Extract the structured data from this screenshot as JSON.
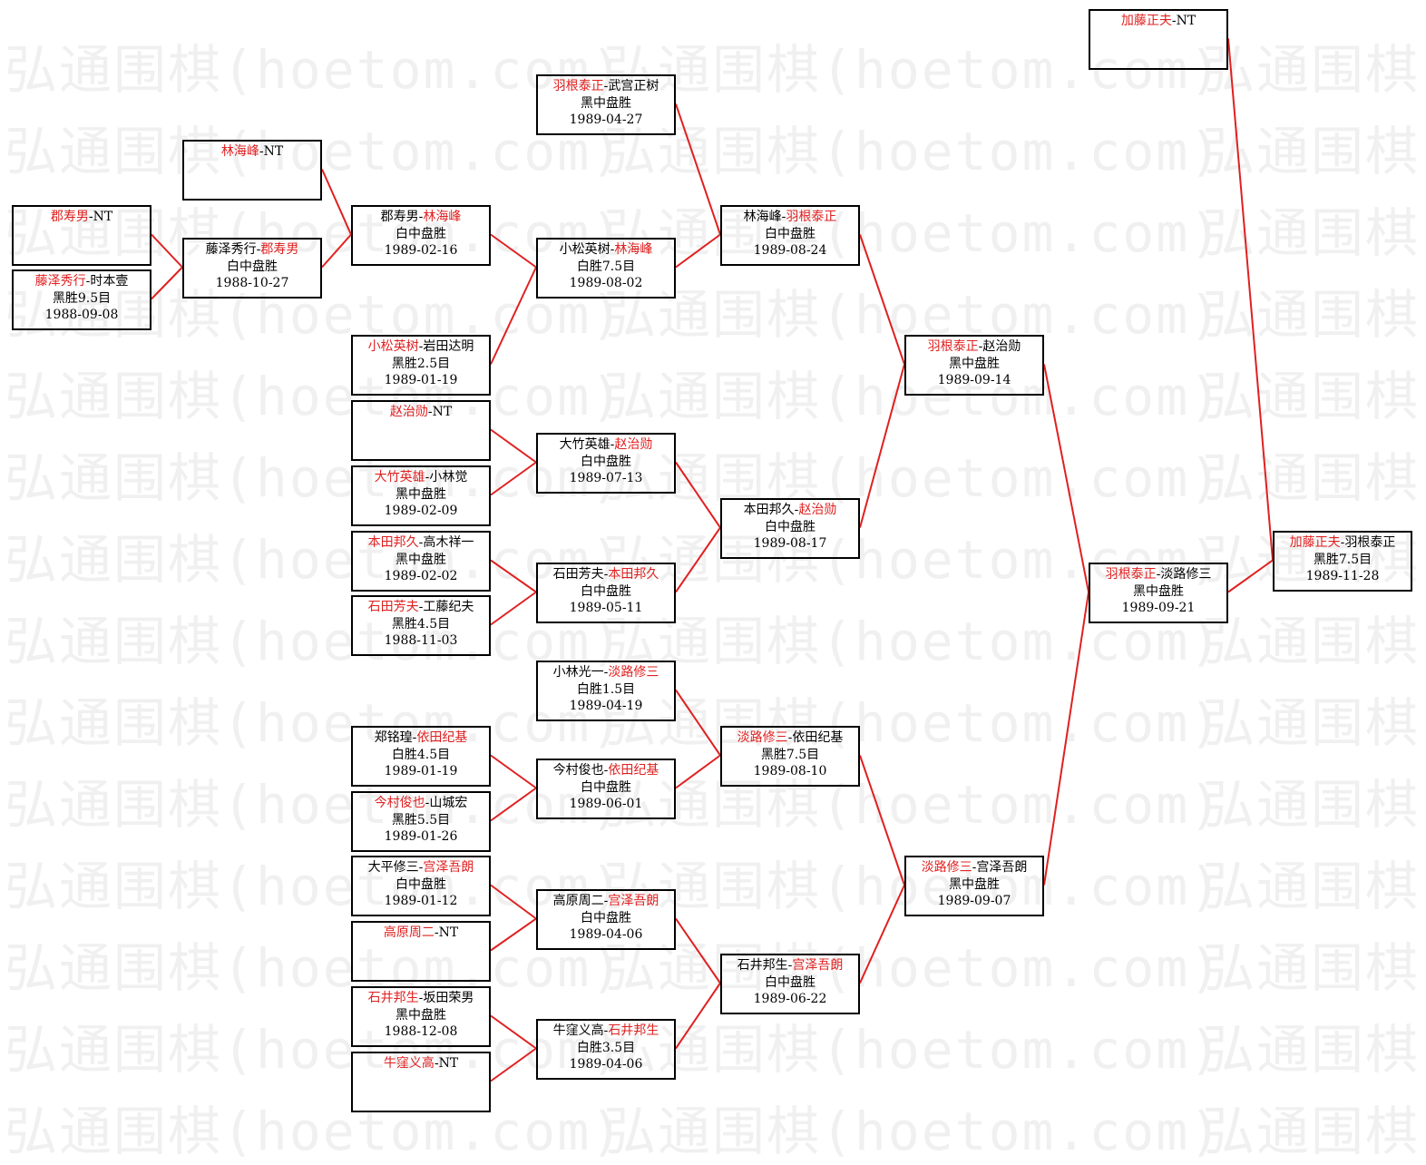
{
  "watermark": "弘通围棋(hoetom.com)",
  "colors": {
    "winner": "#e02020",
    "line": "#e02020",
    "border": "#000000"
  },
  "matches": [
    {
      "p1": "郡寿男",
      "p2": "NT",
      "winner": 1,
      "result": "",
      "date": ""
    },
    {
      "p1": "藤泽秀行",
      "p2": "时本壹",
      "winner": 1,
      "result": "黑胜9.5目",
      "date": "1988-09-08"
    },
    {
      "p1": "林海峰",
      "p2": "NT",
      "winner": 1,
      "result": "",
      "date": ""
    },
    {
      "p1": "藤泽秀行",
      "p2": "郡寿男",
      "winner": 2,
      "result": "白中盘胜",
      "date": "1988-10-27"
    },
    {
      "p1": "郡寿男",
      "p2": "林海峰",
      "winner": 2,
      "result": "白中盘胜",
      "date": "1989-02-16"
    },
    {
      "p1": "小松英树",
      "p2": "岩田达明",
      "winner": 1,
      "result": "黑胜2.5目",
      "date": "1989-01-19"
    },
    {
      "p1": "赵治勋",
      "p2": "NT",
      "winner": 1,
      "result": "",
      "date": ""
    },
    {
      "p1": "大竹英雄",
      "p2": "小林觉",
      "winner": 1,
      "result": "黑中盘胜",
      "date": "1989-02-09"
    },
    {
      "p1": "本田邦久",
      "p2": "高木祥一",
      "winner": 1,
      "result": "黑中盘胜",
      "date": "1989-02-02"
    },
    {
      "p1": "石田芳夫",
      "p2": "工藤纪夫",
      "winner": 1,
      "result": "黑胜4.5目",
      "date": "1988-11-03"
    },
    {
      "p1": "郑铭瑝",
      "p2": "依田纪基",
      "winner": 2,
      "result": "白胜4.5目",
      "date": "1989-01-19"
    },
    {
      "p1": "今村俊也",
      "p2": "山城宏",
      "winner": 1,
      "result": "黑胜5.5目",
      "date": "1989-01-26"
    },
    {
      "p1": "大平修三",
      "p2": "宫泽吾朗",
      "winner": 2,
      "result": "白中盘胜",
      "date": "1989-01-12"
    },
    {
      "p1": "高原周二",
      "p2": "NT",
      "winner": 1,
      "result": "",
      "date": ""
    },
    {
      "p1": "石井邦生",
      "p2": "坂田荣男",
      "winner": 1,
      "result": "黑中盘胜",
      "date": "1988-12-08"
    },
    {
      "p1": "牛窪义高",
      "p2": "NT",
      "winner": 1,
      "result": "",
      "date": ""
    },
    {
      "p1": "羽根泰正",
      "p2": "武宫正树",
      "winner": 1,
      "result": "黑中盘胜",
      "date": "1989-04-27"
    },
    {
      "p1": "小松英树",
      "p2": "林海峰",
      "winner": 2,
      "result": "白胜7.5目",
      "date": "1989-08-02"
    },
    {
      "p1": "大竹英雄",
      "p2": "赵治勋",
      "winner": 2,
      "result": "白中盘胜",
      "date": "1989-07-13"
    },
    {
      "p1": "石田芳夫",
      "p2": "本田邦久",
      "winner": 2,
      "result": "白中盘胜",
      "date": "1989-05-11"
    },
    {
      "p1": "小林光一",
      "p2": "淡路修三",
      "winner": 2,
      "result": "白胜1.5目",
      "date": "1989-04-19"
    },
    {
      "p1": "今村俊也",
      "p2": "依田纪基",
      "winner": 2,
      "result": "白中盘胜",
      "date": "1989-06-01"
    },
    {
      "p1": "高原周二",
      "p2": "宫泽吾朗",
      "winner": 2,
      "result": "白中盘胜",
      "date": "1989-04-06"
    },
    {
      "p1": "牛窪义高",
      "p2": "石井邦生",
      "winner": 2,
      "result": "白胜3.5目",
      "date": "1989-04-06"
    },
    {
      "p1": "林海峰",
      "p2": "羽根泰正",
      "winner": 2,
      "result": "白中盘胜",
      "date": "1989-08-24"
    },
    {
      "p1": "本田邦久",
      "p2": "赵治勋",
      "winner": 2,
      "result": "白中盘胜",
      "date": "1989-08-17"
    },
    {
      "p1": "淡路修三",
      "p2": "依田纪基",
      "winner": 1,
      "result": "黑胜7.5目",
      "date": "1989-08-10"
    },
    {
      "p1": "石井邦生",
      "p2": "宫泽吾朗",
      "winner": 2,
      "result": "白中盘胜",
      "date": "1989-06-22"
    },
    {
      "p1": "羽根泰正",
      "p2": "赵治勋",
      "winner": 1,
      "result": "黑中盘胜",
      "date": "1989-09-14"
    },
    {
      "p1": "淡路修三",
      "p2": "宫泽吾朗",
      "winner": 1,
      "result": "黑中盘胜",
      "date": "1989-09-07"
    },
    {
      "p1": "加藤正夫",
      "p2": "NT",
      "winner": 1,
      "result": "",
      "date": ""
    },
    {
      "p1": "羽根泰正",
      "p2": "淡路修三",
      "winner": 1,
      "result": "黑中盘胜",
      "date": "1989-09-21"
    },
    {
      "p1": "加藤正夫",
      "p2": "羽根泰正",
      "winner": 1,
      "result": "黑胜7.5目",
      "date": "1989-11-28"
    }
  ]
}
